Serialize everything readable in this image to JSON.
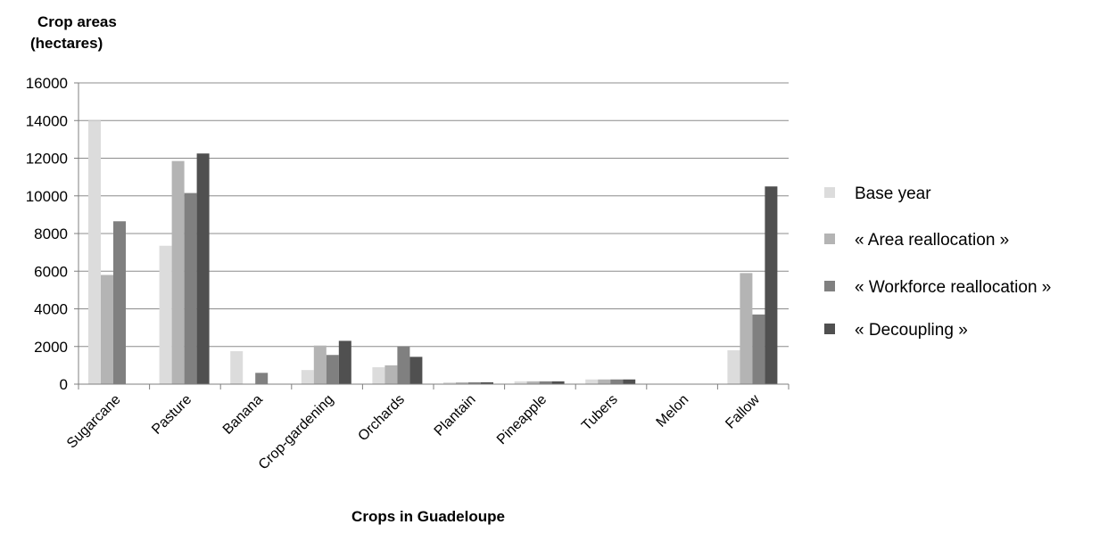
{
  "chart_data": {
    "type": "bar",
    "ylabel_line1": "Crop areas",
    "ylabel_line2": "(hectares)",
    "xlabel": "Crops in Guadeloupe",
    "ylim": [
      0,
      16000
    ],
    "yticks": [
      "0",
      "2000",
      "4000",
      "6000",
      "8000",
      "10000",
      "12000",
      "14000",
      "16000"
    ],
    "grid": true,
    "legend_position": "right",
    "categories": [
      "Sugarcane",
      "Pasture",
      "Banana",
      "Crop-gardening",
      "Orchards",
      "Plantain",
      "Pineapple",
      "Tubers",
      "Melon",
      "Fallow"
    ],
    "series": [
      {
        "name": "Base year",
        "color": "#dcdcdc",
        "values": [
          14000,
          7350,
          1750,
          750,
          900,
          100,
          150,
          250,
          0,
          1800
        ]
      },
      {
        "name": "« Area reallocation »",
        "color": "#b4b4b4",
        "values": [
          5800,
          11850,
          0,
          2050,
          1000,
          100,
          150,
          250,
          0,
          5900
        ]
      },
      {
        "name": "« Workforce  reallocation »",
        "color": "#808080",
        "values": [
          8650,
          10150,
          600,
          1550,
          2000,
          100,
          150,
          250,
          0,
          3700
        ]
      },
      {
        "name": "« Decoupling »",
        "color": "#505050",
        "values": [
          0,
          12250,
          0,
          2300,
          1450,
          100,
          150,
          250,
          0,
          10500
        ]
      }
    ]
  }
}
